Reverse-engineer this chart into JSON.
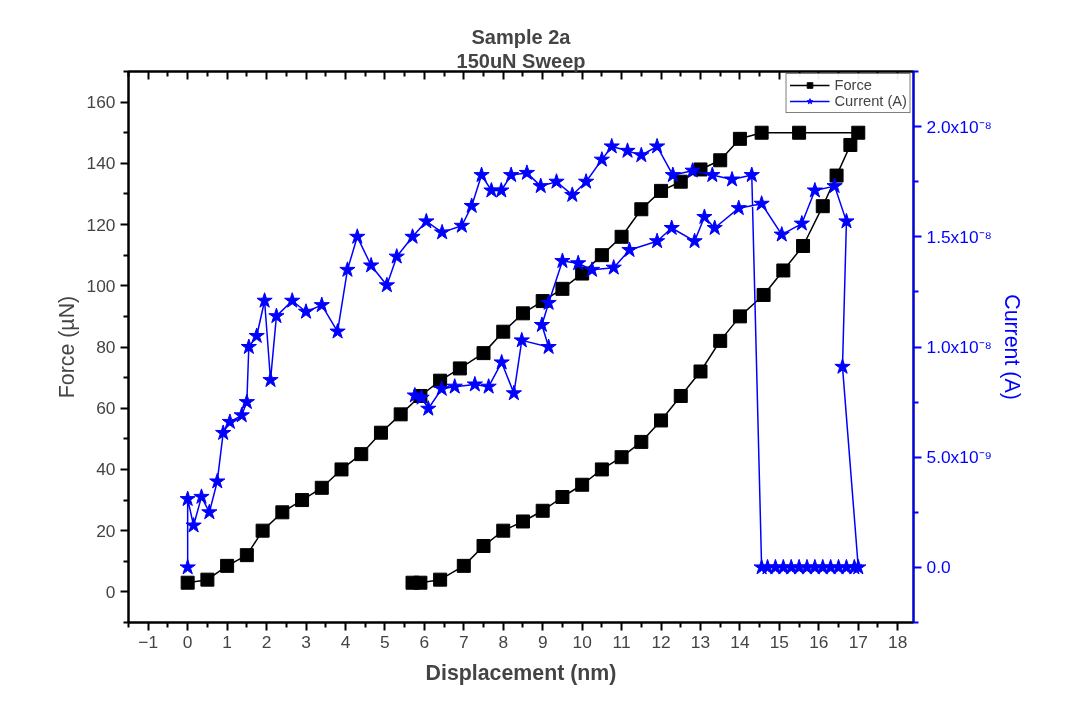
{
  "chart_data": {
    "type": "line",
    "title": "Sample 2a",
    "subtitle": "150uN Sweep",
    "xlabel": "Displacement (nm)",
    "ylabel": "Force (µN)",
    "y2label": "Current (A)",
    "xlim": [
      -1.5,
      18.4
    ],
    "xticks": [
      -1,
      0,
      1,
      2,
      3,
      4,
      5,
      6,
      7,
      8,
      9,
      10,
      11,
      12,
      13,
      14,
      15,
      16,
      17,
      18
    ],
    "ylim": [
      -10,
      170
    ],
    "yticks": [
      0,
      20,
      40,
      60,
      80,
      100,
      120,
      140,
      160
    ],
    "y2lim": [
      -2.5e-09,
      2.25e-08
    ],
    "y2ticks": [
      {
        "value": 0,
        "label": "0.0"
      },
      {
        "value": 5e-09,
        "label": "5.0x10⁻⁹"
      },
      {
        "value": 1e-08,
        "label": "1.0x10⁻⁸"
      },
      {
        "value": 1.5e-08,
        "label": "1.5x10⁻⁸"
      },
      {
        "value": 2e-08,
        "label": "2.0x10⁻⁸"
      }
    ],
    "grid": false,
    "legend": "top right",
    "line_style": "solid",
    "series": [
      {
        "name": "Force",
        "color": "#000000",
        "marker": "square",
        "x": [
          0,
          0.5,
          1,
          1.5,
          1.9,
          2.4,
          2.9,
          3.4,
          3.9,
          4.4,
          4.9,
          5.4,
          5.9,
          6.4,
          6.9,
          7.5,
          8,
          8.5,
          9,
          9.5,
          10,
          10.5,
          11,
          11.5,
          12,
          12.5,
          13,
          13.5,
          14,
          14.55,
          15.5,
          17,
          16.8,
          16.45,
          16.1,
          15.6,
          15.1,
          14.6,
          14.0,
          13.5,
          13.0,
          12.5,
          12.0,
          11.5,
          11.0,
          10.5,
          10.0,
          9.5,
          9.0,
          8.5,
          8.0,
          7.5,
          7.0,
          6.4,
          5.9,
          5.7
        ],
        "values": [
          3,
          4,
          8.5,
          12,
          20,
          26,
          30,
          34,
          40,
          45,
          52,
          58,
          64,
          69,
          73,
          78,
          85,
          91,
          95,
          99,
          104,
          110,
          116,
          125,
          131,
          134,
          138,
          141,
          148,
          150,
          150,
          150,
          146,
          136,
          126,
          113,
          105,
          97,
          90,
          82,
          72,
          64,
          56,
          49,
          44,
          40,
          35,
          31,
          26.5,
          23,
          20,
          15,
          8.5,
          4,
          3,
          3
        ]
      },
      {
        "name": "Current (A)",
        "color": "#0000ff",
        "marker": "star",
        "axis": "y2",
        "x": [
          0,
          0,
          0.15,
          0.35,
          0.55,
          0.75,
          0.9,
          1.07,
          1.37,
          1.5,
          1.55,
          1.75,
          1.95,
          2.1,
          2.25,
          2.65,
          3.0,
          3.4,
          3.8,
          4.05,
          4.3,
          4.65,
          5.05,
          5.3,
          5.7,
          6.05,
          6.45,
          6.95,
          7.2,
          7.45,
          7.7,
          7.95,
          8.2,
          8.6,
          8.95,
          9.35,
          9.75,
          10.1,
          10.5,
          10.75,
          11.15,
          11.5,
          11.9,
          12.3,
          12.8,
          13.3,
          13.8,
          14.3,
          14.55,
          14.7,
          14.9,
          15.1,
          15.3,
          15.5,
          15.7,
          15.9,
          16.1,
          16.3,
          16.5,
          16.7,
          16.9,
          17.0,
          16.6,
          16.7,
          16.4,
          15.9,
          15.57,
          15.06,
          14.55,
          13.97,
          13.36,
          13.1,
          12.85,
          12.27,
          11.9,
          11.2,
          10.8,
          10.25,
          9.9,
          9.5,
          9.15,
          8.98,
          9.15,
          8.47,
          8.27,
          7.96,
          7.63,
          7.28,
          6.77,
          6.44,
          6.1,
          5.93,
          5.76
        ],
        "values": [
          0,
          3.1e-09,
          1.9e-09,
          3.2e-09,
          2.5e-09,
          3.9e-09,
          6.1e-09,
          6.6e-09,
          6.9e-09,
          7.5e-09,
          1e-08,
          1.05e-08,
          1.21e-08,
          8.5e-09,
          1.14e-08,
          1.21e-08,
          1.16e-08,
          1.19e-08,
          1.07e-08,
          1.35e-08,
          1.5e-08,
          1.37e-08,
          1.28e-08,
          1.41e-08,
          1.5e-08,
          1.57e-08,
          1.52e-08,
          1.55e-08,
          1.64e-08,
          1.78e-08,
          1.71e-08,
          1.71e-08,
          1.78e-08,
          1.79e-08,
          1.73e-08,
          1.75e-08,
          1.69e-08,
          1.75e-08,
          1.85e-08,
          1.91e-08,
          1.89e-08,
          1.87e-08,
          1.91e-08,
          1.78e-08,
          1.8e-08,
          1.78e-08,
          1.76e-08,
          1.78e-08,
          0,
          0,
          0,
          0,
          0,
          0,
          0,
          0,
          0,
          0,
          0,
          0,
          0,
          0,
          9.1e-09,
          1.57e-08,
          1.73e-08,
          1.71e-08,
          1.56e-08,
          1.51e-08,
          1.65e-08,
          1.63e-08,
          1.54e-08,
          1.59e-08,
          1.48e-08,
          1.54e-08,
          1.48e-08,
          1.44e-08,
          1.36e-08,
          1.35e-08,
          1.38e-08,
          1.39e-08,
          1.2e-08,
          1.1e-08,
          1e-08,
          1.03e-08,
          7.9e-09,
          9.3e-09,
          8.2e-09,
          8.3e-09,
          8.2e-09,
          8.1e-09,
          7.2e-09,
          7.7e-09,
          7.8e-09
        ]
      }
    ]
  }
}
